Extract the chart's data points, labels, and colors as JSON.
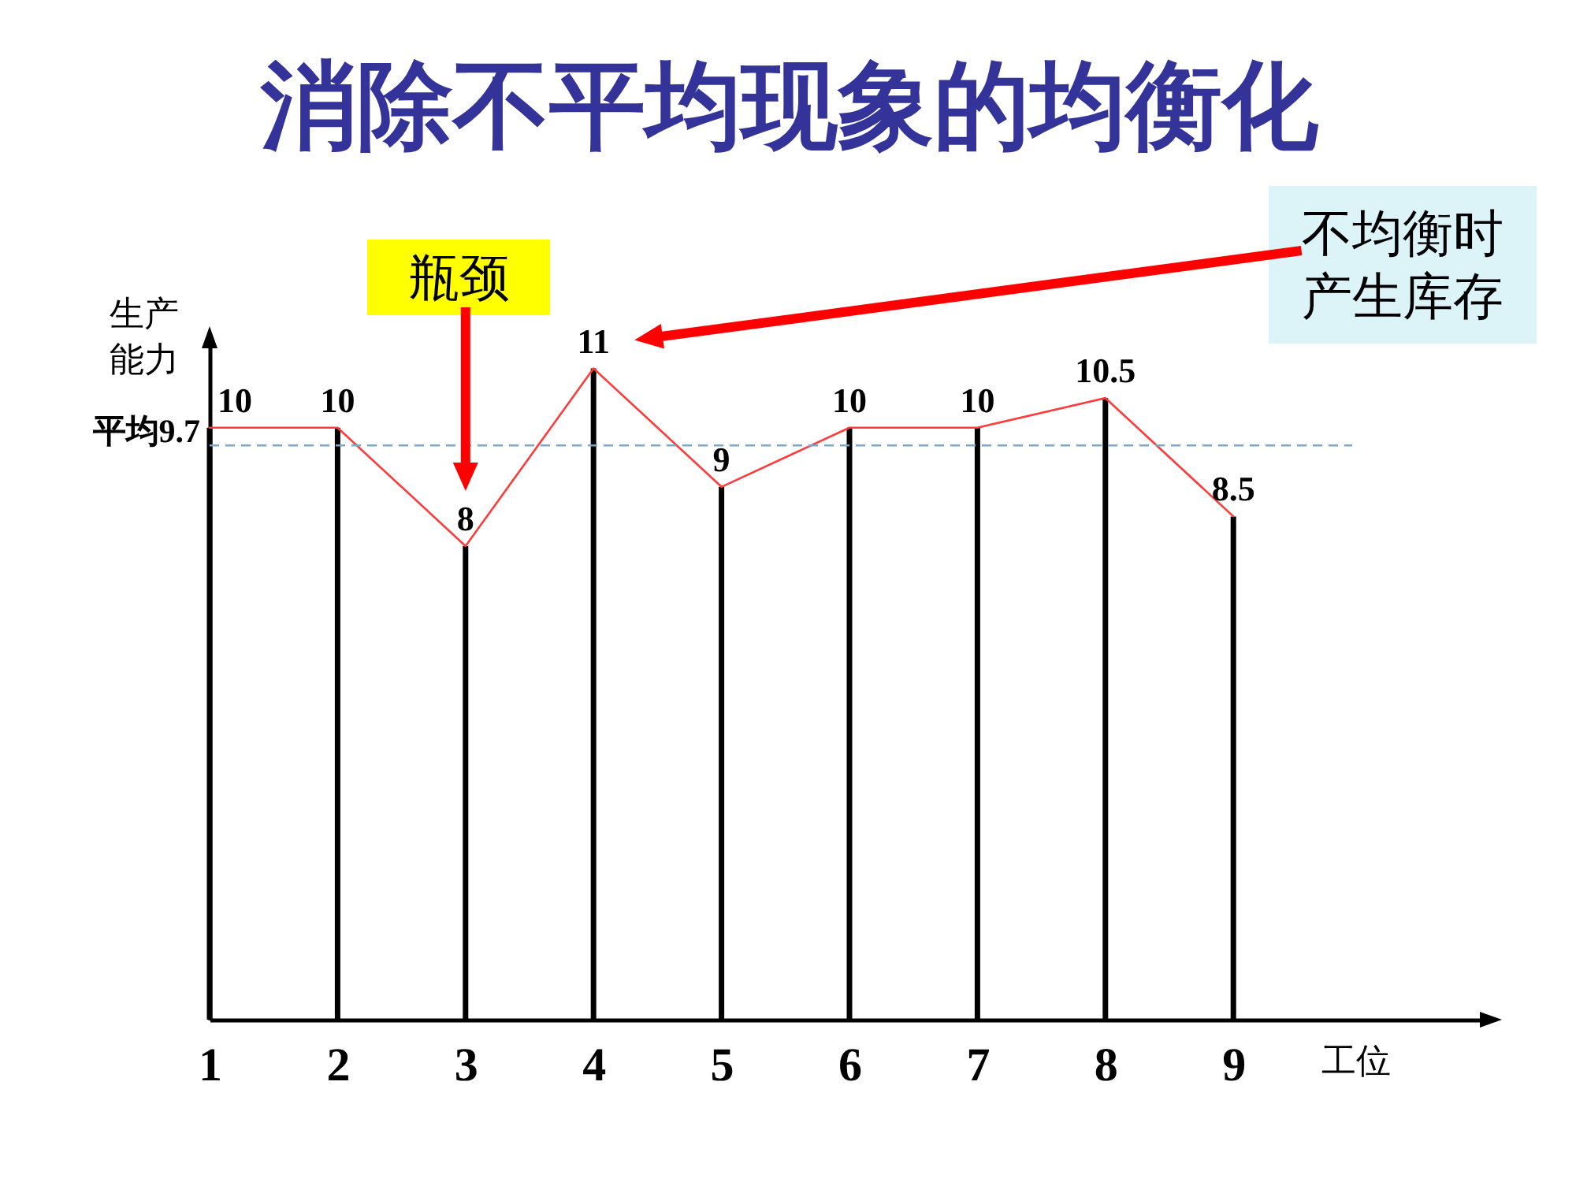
{
  "chart_data": {
    "type": "line",
    "title": "消除不平均现象的均衡化",
    "xlabel": "工位",
    "ylabel": "生产能力",
    "categories": [
      "1",
      "2",
      "3",
      "4",
      "5",
      "6",
      "7",
      "8",
      "9"
    ],
    "series": [
      {
        "type": "bar",
        "color": "#000000",
        "values": [
          10,
          10,
          8,
          11,
          9,
          10,
          10,
          10.5,
          8.5
        ]
      },
      {
        "color": "#ff3b3b",
        "values": [
          10,
          10,
          8,
          11,
          9,
          10,
          10,
          10.5,
          8.5
        ],
        "value_labels": [
          "10",
          "10",
          "8",
          "11",
          "9",
          "10",
          "10",
          "10.5",
          "8.5"
        ]
      }
    ],
    "ylim": [
      0,
      11.5
    ],
    "tick_labels": "x",
    "marker": "none",
    "ref_lines": [
      {
        "axis": "y",
        "value": 9.7,
        "label": "平均9.7",
        "color": "#7fa8c8",
        "line_style": "dashed"
      }
    ],
    "annotations": [
      "瓶颈",
      "不均衡时产生库存"
    ]
  }
}
